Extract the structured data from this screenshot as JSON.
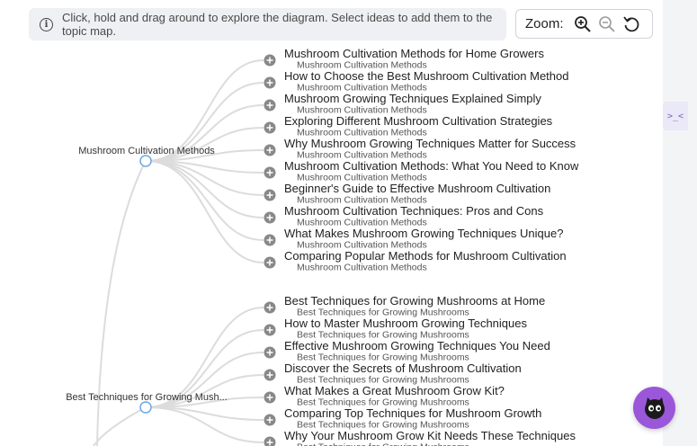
{
  "info": {
    "text": "Click, hold and drag around to explore the diagram. Select ideas to add them to the topic map."
  },
  "zoom": {
    "label": "Zoom:",
    "zoom_in_icon": "zoom-in-icon",
    "zoom_out_icon": "zoom-out-icon",
    "reset_icon": "reset-icon"
  },
  "side_tab": {
    "text": ">_<"
  },
  "chat": {
    "icon": "cat-avatar-icon",
    "color": "#9a57d9"
  },
  "colors": {
    "line": "#dcdcdc",
    "plus": "#888888",
    "node_ring": "#6aa8e8"
  },
  "groups": [
    {
      "label": "Mushroom Cultivation Methods",
      "children": [
        {
          "title": "Mushroom Cultivation Methods for Home Growers",
          "sub": "Mushroom Cultivation Methods"
        },
        {
          "title": "How to Choose the Best Mushroom Cultivation Method",
          "sub": "Mushroom Cultivation Methods"
        },
        {
          "title": "Mushroom Growing Techniques Explained Simply",
          "sub": "Mushroom Cultivation Methods"
        },
        {
          "title": "Exploring Different Mushroom Cultivation Strategies",
          "sub": "Mushroom Cultivation Methods"
        },
        {
          "title": "Why Mushroom Growing Techniques Matter for Success",
          "sub": "Mushroom Cultivation Methods"
        },
        {
          "title": "Mushroom Cultivation Methods: What You Need to Know",
          "sub": "Mushroom Cultivation Methods"
        },
        {
          "title": "Beginner's Guide to Effective Mushroom Cultivation",
          "sub": "Mushroom Cultivation Methods"
        },
        {
          "title": "Mushroom Cultivation Techniques: Pros and Cons",
          "sub": "Mushroom Cultivation Methods"
        },
        {
          "title": "What Makes Mushroom Growing Techniques Unique?",
          "sub": "Mushroom Cultivation Methods"
        },
        {
          "title": "Comparing Popular Methods for Mushroom Cultivation",
          "sub": "Mushroom Cultivation Methods"
        }
      ]
    },
    {
      "label": "Best Techniques for Growing Mush...",
      "children": [
        {
          "title": "Best Techniques for Growing Mushrooms at Home",
          "sub": "Best Techniques for Growing Mushrooms"
        },
        {
          "title": "How to Master Mushroom Growing Techniques",
          "sub": "Best Techniques for Growing Mushrooms"
        },
        {
          "title": "Effective Mushroom Growing Techniques You Need",
          "sub": "Best Techniques for Growing Mushrooms"
        },
        {
          "title": "Discover the Secrets of Mushroom Cultivation",
          "sub": "Best Techniques for Growing Mushrooms"
        },
        {
          "title": "What Makes a Great Mushroom Grow Kit?",
          "sub": "Best Techniques for Growing Mushrooms"
        },
        {
          "title": "Comparing Top Techniques for Mushroom Growth",
          "sub": "Best Techniques for Growing Mushrooms"
        },
        {
          "title": "Why Your Mushroom Grow Kit Needs These Techniques",
          "sub": "Best Techniques for Growing Mushrooms"
        }
      ]
    }
  ]
}
